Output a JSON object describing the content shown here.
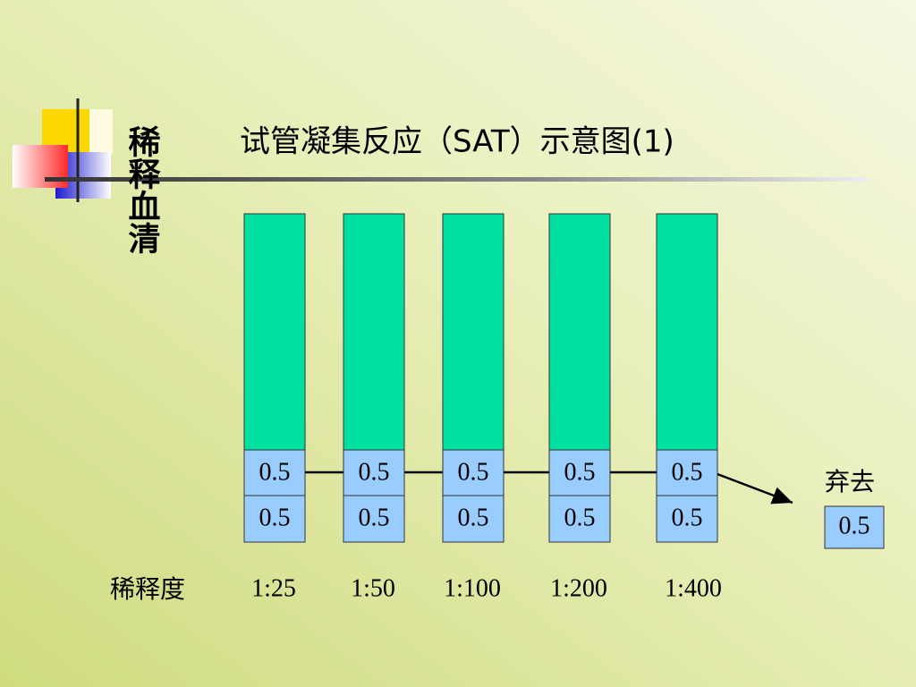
{
  "title": "试管凝集反应（SAT）示意图(1)",
  "side_label": "稀释血清",
  "row_label": "稀释度",
  "tubes": [
    {
      "top": "0.5",
      "bottom": "0.5",
      "dilution": "1:25"
    },
    {
      "top": "0.5",
      "bottom": "0.5",
      "dilution": "1:50"
    },
    {
      "top": "0.5",
      "bottom": "0.5",
      "dilution": "1:100"
    },
    {
      "top": "0.5",
      "bottom": "0.5",
      "dilution": "1:200"
    },
    {
      "top": "0.5",
      "bottom": "0.5",
      "dilution": "1:400"
    }
  ],
  "discard": {
    "label": "弃去",
    "amount": "0.5"
  }
}
